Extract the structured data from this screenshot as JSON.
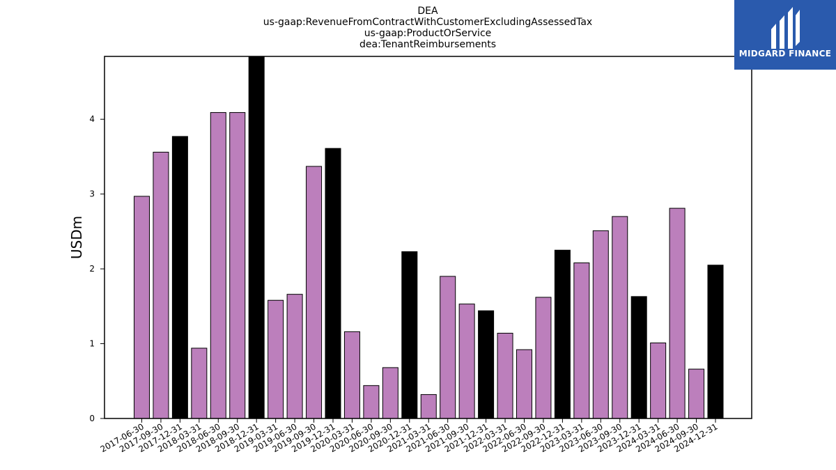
{
  "chart_data": {
    "type": "bar",
    "title_lines": [
      "DEA",
      "us-gaap:RevenueFromContractWithCustomerExcludingAssessedTax",
      "us-gaap:ProductOrService",
      "dea:TenantReimbursements"
    ],
    "ylabel": "USDm",
    "xlabel": "",
    "ylim": [
      0,
      4.84
    ],
    "yticks": [
      0,
      1,
      2,
      3,
      4
    ],
    "grid": false,
    "categories": [
      "2017-06-30",
      "2017-09-30",
      "2017-12-31",
      "2018-03-31",
      "2018-06-30",
      "2018-09-30",
      "2018-12-31",
      "2019-03-31",
      "2019-06-30",
      "2019-09-30",
      "2019-12-31",
      "2020-03-31",
      "2020-06-30",
      "2020-09-30",
      "2020-12-31",
      "2021-03-31",
      "2021-06-30",
      "2021-09-30",
      "2021-12-31",
      "2022-03-31",
      "2022-06-30",
      "2022-09-30",
      "2022-12-31",
      "2023-03-31",
      "2023-06-30",
      "2023-09-30",
      "2023-12-31",
      "2024-03-31",
      "2024-06-30",
      "2024-09-30",
      "2024-12-31"
    ],
    "values": [
      2.97,
      3.56,
      3.77,
      0.94,
      4.09,
      4.09,
      4.86,
      1.58,
      1.66,
      3.37,
      3.61,
      1.16,
      0.44,
      0.68,
      2.23,
      0.32,
      1.9,
      1.53,
      1.44,
      1.14,
      0.92,
      1.62,
      2.25,
      2.08,
      2.51,
      2.7,
      1.63,
      1.01,
      2.81,
      0.66,
      2.05
    ],
    "colors": {
      "quarter": "#bc7fbc",
      "year_end": "#000000",
      "edge": "#000000"
    }
  },
  "logo": {
    "text": "MIDGARD FINANCE",
    "background": "#2a5aad"
  }
}
